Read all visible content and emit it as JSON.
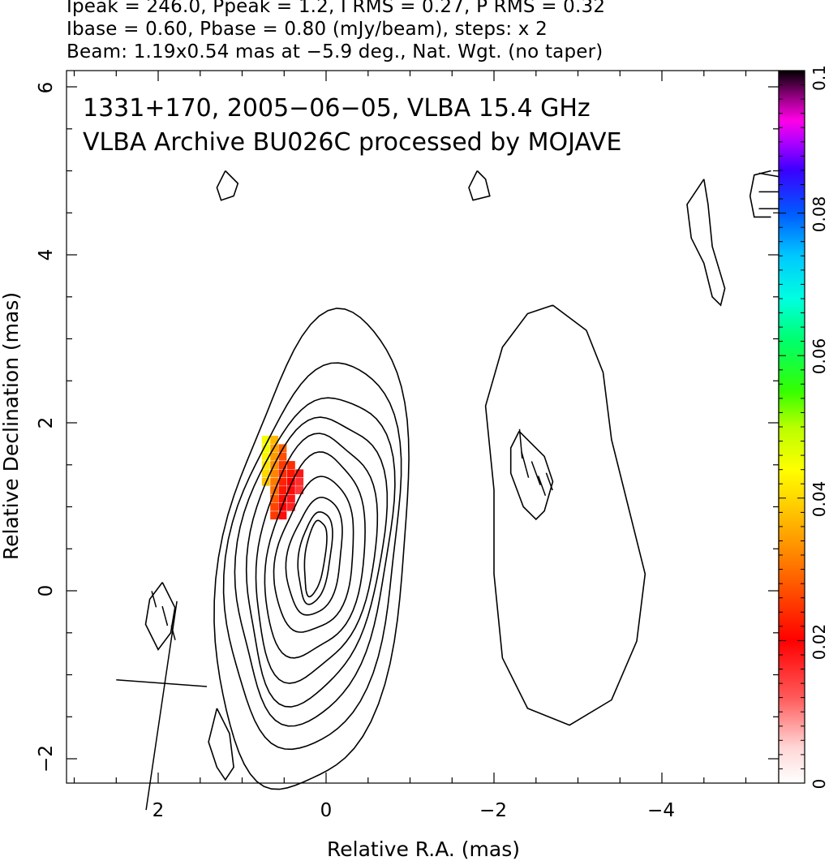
{
  "header": {
    "line1": "Ipeak = 246.0, Ppeak = 1.2, I RMS = 0.27, P RMS = 0.32",
    "line2": "Ibase = 0.60, Pbase = 0.80 (mJy/beam), steps: x 2",
    "line3": "Beam: 1.19x0.54 mas at −5.9 deg., Nat. Wgt. (no taper)"
  },
  "annotation": {
    "line1": "1331+170, 2005−06−05, VLBA 15.4 GHz",
    "line2": "VLBA Archive BU026C processed by MOJAVE"
  },
  "chart_data": {
    "type": "heatmap",
    "title": "1331+170, 2005−06−05, VLBA 15.4 GHz",
    "subtitle": "VLBA Archive BU026C processed by MOJAVE",
    "xlabel": "Relative R.A. (mas)",
    "ylabel": "Relative Declination (mas)",
    "xlim": [
      3.1,
      -5.4
    ],
    "ylim": [
      -2.3,
      6.2
    ],
    "x_ticks": [
      2,
      0,
      -2,
      -4
    ],
    "x_tick_labels": [
      "2",
      "0",
      "−2",
      "−4"
    ],
    "y_ticks": [
      -2,
      0,
      2,
      4,
      6
    ],
    "y_tick_labels": [
      "−2",
      "0",
      "2",
      "4",
      "6"
    ],
    "colorbar": {
      "min": 0,
      "max": 0.1,
      "ticks": [
        0,
        0.02,
        0.04,
        0.06,
        0.08,
        0.1
      ],
      "tick_labels": [
        "0",
        "0.02",
        "0.04",
        "0.06",
        "0.08",
        "0.1"
      ]
    },
    "stats": {
      "Ipeak": 246.0,
      "Ppeak": 1.2,
      "I_RMS": 0.27,
      "P_RMS": 0.32,
      "Ibase": 0.6,
      "Pbase": 0.8,
      "units": "mJy/beam",
      "contour_step_factor": 2,
      "beam_major_mas": 1.19,
      "beam_minor_mas": 0.54,
      "beam_pa_deg": -5.9
    },
    "core_contours": {
      "center": [
        0.13,
        0.4
      ],
      "levels": [
        {
          "rx": 0.12,
          "ry": 0.45
        },
        {
          "rx": 0.19,
          "ry": 0.55
        },
        {
          "rx": 0.32,
          "ry": 0.7
        },
        {
          "rx": 0.46,
          "ry": 0.92
        },
        {
          "rx": 0.58,
          "ry": 1.2
        },
        {
          "rx": 0.7,
          "ry": 1.45
        },
        {
          "rx": 0.8,
          "ry": 1.7
        },
        {
          "rx": 0.9,
          "ry": 1.95
        },
        {
          "rx": 1.0,
          "ry": 2.3
        },
        {
          "rx": 1.1,
          "ry": 2.85
        }
      ]
    },
    "extra_contours": [
      [
        [
          -2.7,
          3.4
        ],
        [
          -3.1,
          3.1
        ],
        [
          -3.3,
          2.6
        ],
        [
          -3.4,
          1.8
        ],
        [
          -3.6,
          1.0
        ],
        [
          -3.8,
          0.2
        ],
        [
          -3.7,
          -0.6
        ],
        [
          -3.4,
          -1.3
        ],
        [
          -2.9,
          -1.6
        ],
        [
          -2.4,
          -1.4
        ],
        [
          -2.1,
          -0.8
        ],
        [
          -2.0,
          0.2
        ],
        [
          -2.0,
          1.2
        ],
        [
          -1.9,
          2.2
        ],
        [
          -2.1,
          2.9
        ],
        [
          -2.4,
          3.3
        ],
        [
          -2.7,
          3.4
        ]
      ],
      [
        [
          -2.3,
          1.9
        ],
        [
          -2.6,
          1.6
        ],
        [
          -2.7,
          1.3
        ],
        [
          -2.6,
          0.95
        ],
        [
          -2.5,
          0.85
        ],
        [
          -2.35,
          1.0
        ],
        [
          -2.2,
          1.4
        ],
        [
          -2.2,
          1.7
        ],
        [
          -2.3,
          1.9
        ]
      ],
      [
        [
          1.95,
          0.1
        ],
        [
          2.1,
          -0.1
        ],
        [
          2.15,
          -0.4
        ],
        [
          2.0,
          -0.7
        ],
        [
          1.85,
          -0.5
        ],
        [
          1.8,
          -0.2
        ],
        [
          1.95,
          0.1
        ]
      ],
      [
        [
          1.2,
          5.0
        ],
        [
          1.3,
          4.8
        ],
        [
          1.25,
          4.65
        ],
        [
          1.1,
          4.7
        ],
        [
          1.05,
          4.85
        ],
        [
          1.2,
          5.0
        ]
      ],
      [
        [
          -1.8,
          5.0
        ],
        [
          -1.7,
          4.8
        ],
        [
          -1.75,
          4.65
        ],
        [
          -1.95,
          4.7
        ],
        [
          -1.9,
          4.9
        ],
        [
          -1.8,
          5.0
        ]
      ],
      [
        [
          -4.5,
          4.9
        ],
        [
          -4.3,
          4.6
        ],
        [
          -4.35,
          4.2
        ],
        [
          -4.5,
          3.9
        ],
        [
          -4.6,
          3.5
        ],
        [
          -4.7,
          3.4
        ],
        [
          -4.75,
          3.6
        ],
        [
          -4.6,
          4.1
        ],
        [
          -4.55,
          4.6
        ],
        [
          -4.5,
          4.9
        ]
      ],
      [
        [
          1.3,
          -1.4
        ],
        [
          1.15,
          -1.7
        ],
        [
          1.1,
          -2.1
        ],
        [
          1.2,
          -2.25
        ],
        [
          1.3,
          -2.1
        ],
        [
          1.4,
          -1.8
        ],
        [
          1.3,
          -1.4
        ]
      ],
      [
        [
          -5.3,
          5.0
        ],
        [
          -5.1,
          4.95
        ],
        [
          -5.05,
          4.7
        ],
        [
          -5.1,
          4.45
        ],
        [
          -5.3,
          4.45
        ]
      ]
    ],
    "polarization_pixels_dx": 0.09,
    "polarization_pixels_dy": 0.09,
    "polarization_pixels": [
      {
        "x": 0.72,
        "y": 1.8,
        "v": 0.045
      },
      {
        "x": 0.72,
        "y": 1.7,
        "v": 0.045
      },
      {
        "x": 0.72,
        "y": 1.6,
        "v": 0.043
      },
      {
        "x": 0.72,
        "y": 1.5,
        "v": 0.042
      },
      {
        "x": 0.72,
        "y": 1.4,
        "v": 0.04
      },
      {
        "x": 0.72,
        "y": 1.3,
        "v": 0.038
      },
      {
        "x": 0.62,
        "y": 1.8,
        "v": 0.037
      },
      {
        "x": 0.62,
        "y": 1.7,
        "v": 0.035
      },
      {
        "x": 0.62,
        "y": 1.6,
        "v": 0.034
      },
      {
        "x": 0.62,
        "y": 1.5,
        "v": 0.033
      },
      {
        "x": 0.62,
        "y": 1.4,
        "v": 0.032
      },
      {
        "x": 0.62,
        "y": 1.3,
        "v": 0.031
      },
      {
        "x": 0.62,
        "y": 1.2,
        "v": 0.03
      },
      {
        "x": 0.62,
        "y": 1.1,
        "v": 0.028
      },
      {
        "x": 0.62,
        "y": 1.0,
        "v": 0.026
      },
      {
        "x": 0.62,
        "y": 0.9,
        "v": 0.025
      },
      {
        "x": 0.52,
        "y": 1.7,
        "v": 0.029
      },
      {
        "x": 0.52,
        "y": 1.6,
        "v": 0.027
      },
      {
        "x": 0.52,
        "y": 1.5,
        "v": 0.025
      },
      {
        "x": 0.52,
        "y": 1.4,
        "v": 0.024
      },
      {
        "x": 0.52,
        "y": 1.3,
        "v": 0.023
      },
      {
        "x": 0.52,
        "y": 1.2,
        "v": 0.022
      },
      {
        "x": 0.52,
        "y": 1.1,
        "v": 0.021
      },
      {
        "x": 0.52,
        "y": 1.0,
        "v": 0.02
      },
      {
        "x": 0.52,
        "y": 0.9,
        "v": 0.019
      },
      {
        "x": 0.42,
        "y": 1.5,
        "v": 0.024
      },
      {
        "x": 0.42,
        "y": 1.4,
        "v": 0.022
      },
      {
        "x": 0.42,
        "y": 1.3,
        "v": 0.02
      },
      {
        "x": 0.42,
        "y": 1.2,
        "v": 0.019
      },
      {
        "x": 0.42,
        "y": 1.1,
        "v": 0.018
      },
      {
        "x": 0.42,
        "y": 1.0,
        "v": 0.017
      },
      {
        "x": 0.32,
        "y": 1.4,
        "v": 0.018
      },
      {
        "x": 0.32,
        "y": 1.3,
        "v": 0.016
      },
      {
        "x": 0.32,
        "y": 1.2,
        "v": 0.015
      }
    ],
    "evpa_vectors": [
      {
        "x": -2.32,
        "y": 1.75,
        "len": 0.35,
        "angle_deg": 85
      },
      {
        "x": -2.37,
        "y": 1.5,
        "len": 0.32,
        "angle_deg": 75
      },
      {
        "x": -2.5,
        "y": 1.4,
        "len": 0.3,
        "angle_deg": 70
      },
      {
        "x": -2.57,
        "y": 1.25,
        "len": 0.25,
        "angle_deg": 70
      },
      {
        "x": -2.66,
        "y": 1.3,
        "len": 0.22,
        "angle_deg": 70
      },
      {
        "x": 1.92,
        "y": -0.3,
        "len": 0.24,
        "angle_deg": 75
      },
      {
        "x": 2.05,
        "y": -0.1,
        "len": 0.2,
        "angle_deg": 75
      },
      {
        "x": 1.82,
        "y": -0.5,
        "len": 0.18,
        "angle_deg": 75
      },
      {
        "x": -5.28,
        "y": 4.95,
        "len": 0.25,
        "angle_deg": 10
      },
      {
        "x": -5.28,
        "y": 4.75,
        "len": 0.25,
        "angle_deg": 0
      },
      {
        "x": -5.28,
        "y": 4.55,
        "len": 0.25,
        "angle_deg": 0
      }
    ],
    "beam_marker": {
      "x": 1.96,
      "y": -1.1,
      "major": 1.19,
      "minor": 0.54,
      "pa_deg": -5.9
    },
    "grid": false
  }
}
